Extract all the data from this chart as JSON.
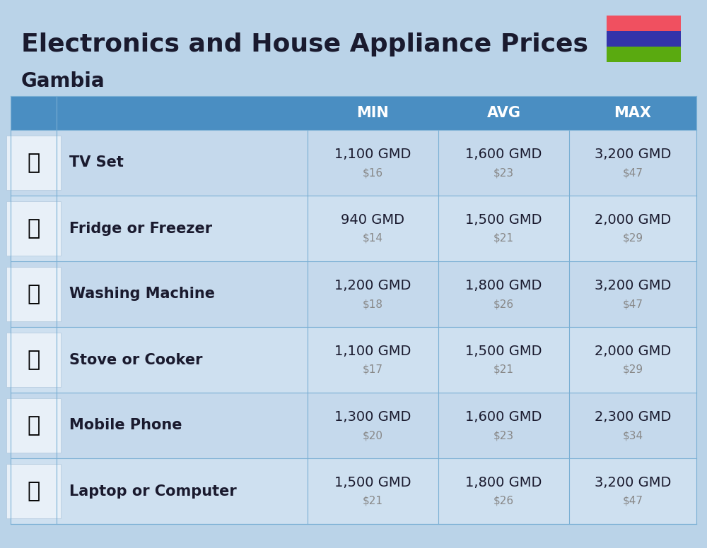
{
  "title": "Electronics and House Appliance Prices",
  "subtitle": "Gambia",
  "background_color": "#bad3e8",
  "header_color": "#4a8ec2",
  "header_text_color": "#ffffff",
  "separator_color": "#7aafd4",
  "row_colors": [
    "#c5d9ec",
    "#cee0f0"
  ],
  "text_color": "#1a1a2e",
  "usd_color": "#888888",
  "columns": [
    "MIN",
    "AVG",
    "MAX"
  ],
  "items": [
    {
      "name": "TV Set",
      "min_gmd": "1,100 GMD",
      "min_usd": "$16",
      "avg_gmd": "1,600 GMD",
      "avg_usd": "$23",
      "max_gmd": "3,200 GMD",
      "max_usd": "$47"
    },
    {
      "name": "Fridge or Freezer",
      "min_gmd": "940 GMD",
      "min_usd": "$14",
      "avg_gmd": "1,500 GMD",
      "avg_usd": "$21",
      "max_gmd": "2,000 GMD",
      "max_usd": "$29"
    },
    {
      "name": "Washing Machine",
      "min_gmd": "1,200 GMD",
      "min_usd": "$18",
      "avg_gmd": "1,800 GMD",
      "avg_usd": "$26",
      "max_gmd": "3,200 GMD",
      "max_usd": "$47"
    },
    {
      "name": "Stove or Cooker",
      "min_gmd": "1,100 GMD",
      "min_usd": "$17",
      "avg_gmd": "1,500 GMD",
      "avg_usd": "$21",
      "max_gmd": "2,000 GMD",
      "max_usd": "$29"
    },
    {
      "name": "Mobile Phone",
      "min_gmd": "1,300 GMD",
      "min_usd": "$20",
      "avg_gmd": "1,600 GMD",
      "avg_usd": "$23",
      "max_gmd": "2,300 GMD",
      "max_usd": "$34"
    },
    {
      "name": "Laptop or Computer",
      "min_gmd": "1,500 GMD",
      "min_usd": "$21",
      "avg_gmd": "1,800 GMD",
      "avg_usd": "$26",
      "max_gmd": "3,200 GMD",
      "max_usd": "$47"
    }
  ],
  "flag_colors": [
    "#f05060",
    "#3333aa",
    "#5aaa10"
  ],
  "title_fontsize": 26,
  "subtitle_fontsize": 20,
  "header_fontsize": 15,
  "item_name_fontsize": 15,
  "value_fontsize": 14,
  "usd_fontsize": 11,
  "icon_fontsize": 22
}
